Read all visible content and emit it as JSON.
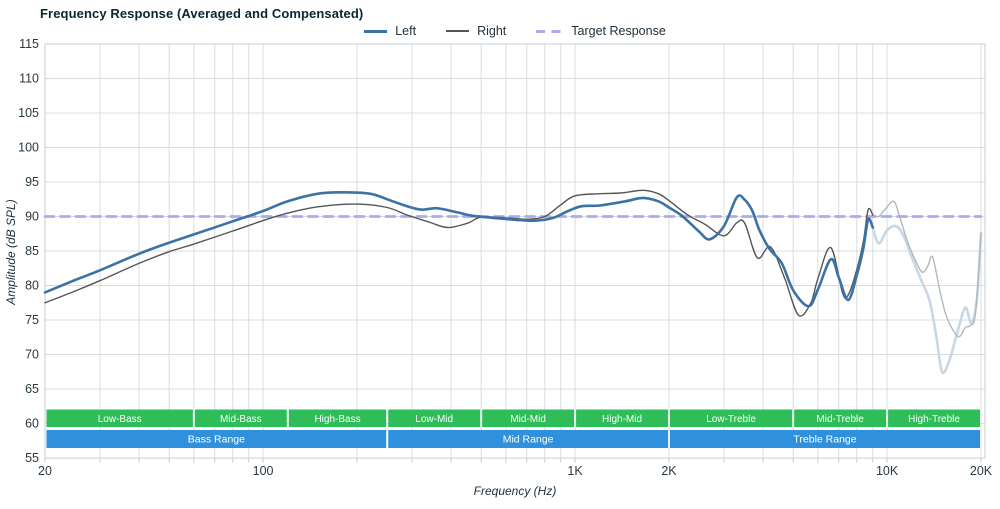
{
  "title": "Frequency Response (Averaged and Compensated)",
  "legend": {
    "items": [
      {
        "label": "Left",
        "color": "#3b73a6",
        "line_style": "solid",
        "thickness": "thick"
      },
      {
        "label": "Right",
        "color": "#555555",
        "line_style": "solid",
        "thickness": "thin"
      },
      {
        "label": "Target Response",
        "color": "#abacee",
        "line_style": "dashed",
        "thickness": "thick"
      }
    ]
  },
  "axes": {
    "x": {
      "label": "Frequency (Hz)",
      "scale": "log",
      "min": 20,
      "max": 20000,
      "ticks": [
        {
          "f": 20,
          "label": "20"
        },
        {
          "f": 100,
          "label": "100"
        },
        {
          "f": 1000,
          "label": "1K"
        },
        {
          "f": 2000,
          "label": "2K"
        },
        {
          "f": 10000,
          "label": "10K"
        },
        {
          "f": 20000,
          "label": "20K"
        }
      ],
      "gridlines": [
        20,
        30,
        40,
        50,
        60,
        70,
        80,
        90,
        100,
        200,
        300,
        400,
        500,
        600,
        700,
        800,
        900,
        1000,
        2000,
        3000,
        4000,
        5000,
        6000,
        7000,
        8000,
        9000,
        10000,
        20000
      ]
    },
    "y": {
      "label": "Amplitude (dB SPL)",
      "min": 55,
      "max": 115,
      "step": 5,
      "tick_labels": [
        "115",
        "110",
        "105",
        "100",
        "95",
        "90",
        "85",
        "80",
        "75",
        "70",
        "65",
        "60",
        "55"
      ]
    }
  },
  "bands": {
    "sub_color": "#2ebd59",
    "main_color": "#2f90dd",
    "text_color": "#ffffff",
    "sub": [
      {
        "label": "Low-Bass",
        "from": 20,
        "to": 60
      },
      {
        "label": "Mid-Bass",
        "from": 60,
        "to": 120
      },
      {
        "label": "High-Bass",
        "from": 120,
        "to": 250
      },
      {
        "label": "Low-Mid",
        "from": 250,
        "to": 500
      },
      {
        "label": "Mid-Mid",
        "from": 500,
        "to": 1000
      },
      {
        "label": "High-Mid",
        "from": 1000,
        "to": 2000
      },
      {
        "label": "Low-Treble",
        "from": 2000,
        "to": 5000
      },
      {
        "label": "Mid-Treble",
        "from": 5000,
        "to": 10000
      },
      {
        "label": "High-Treble",
        "from": 10000,
        "to": 20000
      }
    ],
    "main": [
      {
        "label": "Bass Range",
        "from": 20,
        "to": 250
      },
      {
        "label": "Mid Range",
        "from": 250,
        "to": 2000
      },
      {
        "label": "Treble Range",
        "from": 2000,
        "to": 20000
      }
    ]
  },
  "chart_data": {
    "type": "line",
    "title": "Frequency Response (Averaged and Compensated)",
    "xlabel": "Frequency (Hz)",
    "ylabel": "Amplitude (dB SPL)",
    "xlim": [
      20,
      20000
    ],
    "ylim": [
      55,
      115
    ],
    "x_scale": "log",
    "grid": true,
    "legend_position": "top-center",
    "target_db": 90,
    "fade_start_hz": 9000,
    "series": [
      {
        "name": "Left",
        "color": "#3b73a6",
        "faded_color": "#c8d7e8",
        "width": 2.6,
        "solid_points": [
          [
            20,
            79.0
          ],
          [
            25,
            80.8
          ],
          [
            30,
            82.2
          ],
          [
            40,
            84.6
          ],
          [
            50,
            86.2
          ],
          [
            60,
            87.4
          ],
          [
            80,
            89.3
          ],
          [
            100,
            90.8
          ],
          [
            120,
            92.2
          ],
          [
            150,
            93.3
          ],
          [
            180,
            93.5
          ],
          [
            220,
            93.3
          ],
          [
            250,
            92.5
          ],
          [
            280,
            91.7
          ],
          [
            320,
            91.0
          ],
          [
            360,
            91.2
          ],
          [
            420,
            90.6
          ],
          [
            470,
            90.1
          ],
          [
            550,
            89.8
          ],
          [
            650,
            89.5
          ],
          [
            750,
            89.4
          ],
          [
            850,
            89.8
          ],
          [
            950,
            90.8
          ],
          [
            1050,
            91.5
          ],
          [
            1200,
            91.6
          ],
          [
            1450,
            92.2
          ],
          [
            1650,
            92.7
          ],
          [
            1850,
            92.2
          ],
          [
            2000,
            91.3
          ],
          [
            2200,
            90.1
          ],
          [
            2500,
            87.8
          ],
          [
            2700,
            86.7
          ],
          [
            3000,
            88.6
          ],
          [
            3300,
            92.8
          ],
          [
            3500,
            92.4
          ],
          [
            3700,
            90.8
          ],
          [
            3900,
            88.0
          ],
          [
            4200,
            85.3
          ],
          [
            4600,
            83.2
          ],
          [
            5000,
            79.3
          ],
          [
            5600,
            77.0
          ],
          [
            6000,
            79.4
          ],
          [
            6600,
            83.8
          ],
          [
            7000,
            81.2
          ],
          [
            7500,
            77.9
          ],
          [
            8000,
            81.5
          ],
          [
            8400,
            85.5
          ],
          [
            8700,
            89.6
          ],
          [
            9000,
            88.4
          ]
        ],
        "faded_points": [
          [
            9000,
            88.4
          ],
          [
            9400,
            86.1
          ],
          [
            10000,
            88.0
          ],
          [
            10700,
            88.6
          ],
          [
            11300,
            87.2
          ],
          [
            12000,
            84.1
          ],
          [
            12800,
            81.0
          ],
          [
            13700,
            77.7
          ],
          [
            14400,
            72.5
          ],
          [
            15000,
            67.5
          ],
          [
            15800,
            69.0
          ],
          [
            16700,
            72.8
          ],
          [
            17800,
            76.8
          ],
          [
            18600,
            74.6
          ],
          [
            19400,
            78.0
          ],
          [
            20000,
            87.5
          ]
        ]
      },
      {
        "name": "Right",
        "color": "#555555",
        "faded_color": "#b3b8bd",
        "width": 1.4,
        "solid_points": [
          [
            20,
            77.5
          ],
          [
            25,
            79.2
          ],
          [
            30,
            80.7
          ],
          [
            40,
            83.2
          ],
          [
            50,
            84.9
          ],
          [
            60,
            86.0
          ],
          [
            80,
            87.9
          ],
          [
            100,
            89.4
          ],
          [
            120,
            90.5
          ],
          [
            150,
            91.4
          ],
          [
            200,
            91.8
          ],
          [
            250,
            91.3
          ],
          [
            290,
            90.2
          ],
          [
            340,
            89.2
          ],
          [
            390,
            88.4
          ],
          [
            450,
            89.0
          ],
          [
            500,
            89.9
          ],
          [
            600,
            89.8
          ],
          [
            700,
            89.6
          ],
          [
            800,
            90.0
          ],
          [
            900,
            91.7
          ],
          [
            1000,
            93.0
          ],
          [
            1200,
            93.3
          ],
          [
            1400,
            93.4
          ],
          [
            1650,
            93.8
          ],
          [
            1850,
            93.3
          ],
          [
            2000,
            92.3
          ],
          [
            2300,
            90.2
          ],
          [
            2600,
            88.9
          ],
          [
            3000,
            87.2
          ],
          [
            3300,
            89.1
          ],
          [
            3500,
            89.0
          ],
          [
            3840,
            84.0
          ],
          [
            4230,
            85.6
          ],
          [
            4700,
            81.0
          ],
          [
            5200,
            75.7
          ],
          [
            5700,
            77.5
          ],
          [
            6000,
            81.0
          ],
          [
            6600,
            85.5
          ],
          [
            7200,
            78.9
          ],
          [
            7500,
            78.6
          ],
          [
            8000,
            82.3
          ],
          [
            8400,
            86.5
          ],
          [
            8700,
            91.0
          ],
          [
            9000,
            90.2
          ]
        ],
        "faded_points": [
          [
            9000,
            90.2
          ],
          [
            9400,
            90.0
          ],
          [
            9800,
            90.9
          ],
          [
            10500,
            92.2
          ],
          [
            11000,
            89.8
          ],
          [
            11500,
            87.0
          ],
          [
            12000,
            84.8
          ],
          [
            12900,
            82.0
          ],
          [
            13500,
            82.8
          ],
          [
            14000,
            84.1
          ],
          [
            14800,
            79.0
          ],
          [
            15600,
            75.2
          ],
          [
            16900,
            72.6
          ],
          [
            17800,
            73.9
          ],
          [
            18500,
            74.2
          ],
          [
            19200,
            76.0
          ],
          [
            20000,
            87.7
          ]
        ]
      },
      {
        "name": "Target Response",
        "color": "#abacee",
        "width": 2.8,
        "dashed": true,
        "solid_points": [
          [
            20,
            90
          ],
          [
            20000,
            90
          ]
        ],
        "faded_points": []
      }
    ]
  }
}
